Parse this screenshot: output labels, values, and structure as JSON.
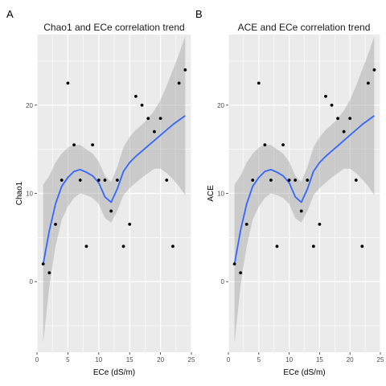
{
  "chart_data": [
    {
      "panel_label": "A",
      "type": "scatter",
      "title": "Chao1 and ECe correlation trend",
      "xlabel": "ECe (dS/m)",
      "ylabel": "Chao1",
      "xlim": [
        0,
        25
      ],
      "ylim": [
        -8,
        28
      ],
      "xticks": [
        0,
        5,
        10,
        15,
        20,
        25
      ],
      "yticks": [
        0,
        10,
        20
      ],
      "x_tick_labels": [
        "0",
        "5",
        "10",
        "15",
        "20",
        "25"
      ],
      "y_tick_labels": [
        "0",
        "10",
        "20"
      ],
      "grid": true,
      "points": [
        {
          "x": 1,
          "y": 2
        },
        {
          "x": 2,
          "y": 1
        },
        {
          "x": 3,
          "y": 6.5
        },
        {
          "x": 4,
          "y": 11.5
        },
        {
          "x": 5,
          "y": 22.5
        },
        {
          "x": 6,
          "y": 15.5
        },
        {
          "x": 7,
          "y": 11.5
        },
        {
          "x": 8,
          "y": 4
        },
        {
          "x": 9,
          "y": 15.5
        },
        {
          "x": 10,
          "y": 11.5
        },
        {
          "x": 11,
          "y": 11.5
        },
        {
          "x": 12,
          "y": 8
        },
        {
          "x": 13,
          "y": 11.5
        },
        {
          "x": 14,
          "y": 4
        },
        {
          "x": 15,
          "y": 6.5
        },
        {
          "x": 16,
          "y": 21
        },
        {
          "x": 17,
          "y": 20
        },
        {
          "x": 18,
          "y": 18.5
        },
        {
          "x": 19,
          "y": 17
        },
        {
          "x": 20,
          "y": 18.5
        },
        {
          "x": 21,
          "y": 11.5
        },
        {
          "x": 22,
          "y": 4
        },
        {
          "x": 23,
          "y": 22.5
        },
        {
          "x": 24,
          "y": 24
        }
      ],
      "smooth": [
        {
          "x": 1,
          "y": 2,
          "lo": -7,
          "hi": 11
        },
        {
          "x": 2,
          "y": 5.8,
          "lo": -0.5,
          "hi": 12
        },
        {
          "x": 3,
          "y": 8.8,
          "lo": 4,
          "hi": 13.5
        },
        {
          "x": 4,
          "y": 10.8,
          "lo": 7,
          "hi": 14.5
        },
        {
          "x": 5,
          "y": 11.8,
          "lo": 8.5,
          "hi": 15.2
        },
        {
          "x": 6,
          "y": 12.5,
          "lo": 9.5,
          "hi": 15.5
        },
        {
          "x": 7,
          "y": 12.7,
          "lo": 10,
          "hi": 15.5
        },
        {
          "x": 8,
          "y": 12.4,
          "lo": 9.8,
          "hi": 15
        },
        {
          "x": 9,
          "y": 12,
          "lo": 9.5,
          "hi": 14.5
        },
        {
          "x": 10,
          "y": 11.2,
          "lo": 8.8,
          "hi": 13.6
        },
        {
          "x": 11,
          "y": 9.6,
          "lo": 7.2,
          "hi": 12
        },
        {
          "x": 12,
          "y": 9,
          "lo": 6.7,
          "hi": 11.3
        },
        {
          "x": 13,
          "y": 10.5,
          "lo": 8,
          "hi": 13
        },
        {
          "x": 14,
          "y": 12.5,
          "lo": 9.8,
          "hi": 15.2
        },
        {
          "x": 15,
          "y": 13.5,
          "lo": 10.6,
          "hi": 16.4
        },
        {
          "x": 16,
          "y": 14.2,
          "lo": 11.2,
          "hi": 17.2
        },
        {
          "x": 17,
          "y": 14.8,
          "lo": 11.8,
          "hi": 17.8
        },
        {
          "x": 18,
          "y": 15.4,
          "lo": 12.3,
          "hi": 18.5
        },
        {
          "x": 19,
          "y": 16,
          "lo": 12.8,
          "hi": 19.4
        },
        {
          "x": 20,
          "y": 16.6,
          "lo": 12.8,
          "hi": 20.6
        },
        {
          "x": 21,
          "y": 17.2,
          "lo": 12.3,
          "hi": 22.2
        },
        {
          "x": 22,
          "y": 17.8,
          "lo": 11.6,
          "hi": 24
        },
        {
          "x": 23,
          "y": 18.3,
          "lo": 10.8,
          "hi": 25.8
        },
        {
          "x": 24,
          "y": 18.8,
          "lo": 9.8,
          "hi": 27.8
        }
      ],
      "colors": {
        "panel": "#ebebeb",
        "grid": "#ffffff",
        "point": "#000000",
        "line": "#3366ff",
        "ribbon": "#999999"
      }
    },
    {
      "panel_label": "B",
      "type": "scatter",
      "title": "ACE and ECe correlation trend",
      "xlabel": "ECe (dS/m)",
      "ylabel": "ACE",
      "xlim": [
        0,
        25
      ],
      "ylim": [
        -8,
        28
      ],
      "xticks": [
        0,
        5,
        10,
        15,
        20,
        25
      ],
      "yticks": [
        0,
        10,
        20
      ],
      "x_tick_labels": [
        "0",
        "5",
        "10",
        "15",
        "20",
        "25"
      ],
      "y_tick_labels": [
        "0",
        "10",
        "20"
      ],
      "grid": true,
      "points": [
        {
          "x": 1,
          "y": 2
        },
        {
          "x": 2,
          "y": 1
        },
        {
          "x": 3,
          "y": 6.5
        },
        {
          "x": 4,
          "y": 11.5
        },
        {
          "x": 5,
          "y": 22.5
        },
        {
          "x": 6,
          "y": 15.5
        },
        {
          "x": 7,
          "y": 11.5
        },
        {
          "x": 8,
          "y": 4
        },
        {
          "x": 9,
          "y": 15.5
        },
        {
          "x": 10,
          "y": 11.5
        },
        {
          "x": 11,
          "y": 11.5
        },
        {
          "x": 12,
          "y": 8
        },
        {
          "x": 13,
          "y": 11.5
        },
        {
          "x": 14,
          "y": 4
        },
        {
          "x": 15,
          "y": 6.5
        },
        {
          "x": 16,
          "y": 21
        },
        {
          "x": 17,
          "y": 20
        },
        {
          "x": 18,
          "y": 18.5
        },
        {
          "x": 19,
          "y": 17
        },
        {
          "x": 20,
          "y": 18.5
        },
        {
          "x": 21,
          "y": 11.5
        },
        {
          "x": 22,
          "y": 4
        },
        {
          "x": 23,
          "y": 22.5
        },
        {
          "x": 24,
          "y": 24
        }
      ],
      "smooth": [
        {
          "x": 1,
          "y": 2,
          "lo": -7,
          "hi": 11
        },
        {
          "x": 2,
          "y": 5.8,
          "lo": -0.5,
          "hi": 12
        },
        {
          "x": 3,
          "y": 8.8,
          "lo": 4,
          "hi": 13.5
        },
        {
          "x": 4,
          "y": 10.8,
          "lo": 7,
          "hi": 14.5
        },
        {
          "x": 5,
          "y": 11.8,
          "lo": 8.5,
          "hi": 15.2
        },
        {
          "x": 6,
          "y": 12.5,
          "lo": 9.5,
          "hi": 15.5
        },
        {
          "x": 7,
          "y": 12.7,
          "lo": 10,
          "hi": 15.5
        },
        {
          "x": 8,
          "y": 12.4,
          "lo": 9.8,
          "hi": 15
        },
        {
          "x": 9,
          "y": 12,
          "lo": 9.5,
          "hi": 14.5
        },
        {
          "x": 10,
          "y": 11.2,
          "lo": 8.8,
          "hi": 13.6
        },
        {
          "x": 11,
          "y": 9.6,
          "lo": 7.2,
          "hi": 12
        },
        {
          "x": 12,
          "y": 9,
          "lo": 6.7,
          "hi": 11.3
        },
        {
          "x": 13,
          "y": 10.5,
          "lo": 8,
          "hi": 13
        },
        {
          "x": 14,
          "y": 12.5,
          "lo": 9.8,
          "hi": 15.2
        },
        {
          "x": 15,
          "y": 13.5,
          "lo": 10.6,
          "hi": 16.4
        },
        {
          "x": 16,
          "y": 14.2,
          "lo": 11.2,
          "hi": 17.2
        },
        {
          "x": 17,
          "y": 14.8,
          "lo": 11.8,
          "hi": 17.8
        },
        {
          "x": 18,
          "y": 15.4,
          "lo": 12.3,
          "hi": 18.5
        },
        {
          "x": 19,
          "y": 16,
          "lo": 12.8,
          "hi": 19.4
        },
        {
          "x": 20,
          "y": 16.6,
          "lo": 12.8,
          "hi": 20.6
        },
        {
          "x": 21,
          "y": 17.2,
          "lo": 12.3,
          "hi": 22.2
        },
        {
          "x": 22,
          "y": 17.8,
          "lo": 11.6,
          "hi": 24
        },
        {
          "x": 23,
          "y": 18.3,
          "lo": 10.8,
          "hi": 25.8
        },
        {
          "x": 24,
          "y": 18.8,
          "lo": 9.8,
          "hi": 27.8
        }
      ],
      "colors": {
        "panel": "#ebebeb",
        "grid": "#ffffff",
        "point": "#000000",
        "line": "#3366ff",
        "ribbon": "#999999"
      }
    }
  ]
}
